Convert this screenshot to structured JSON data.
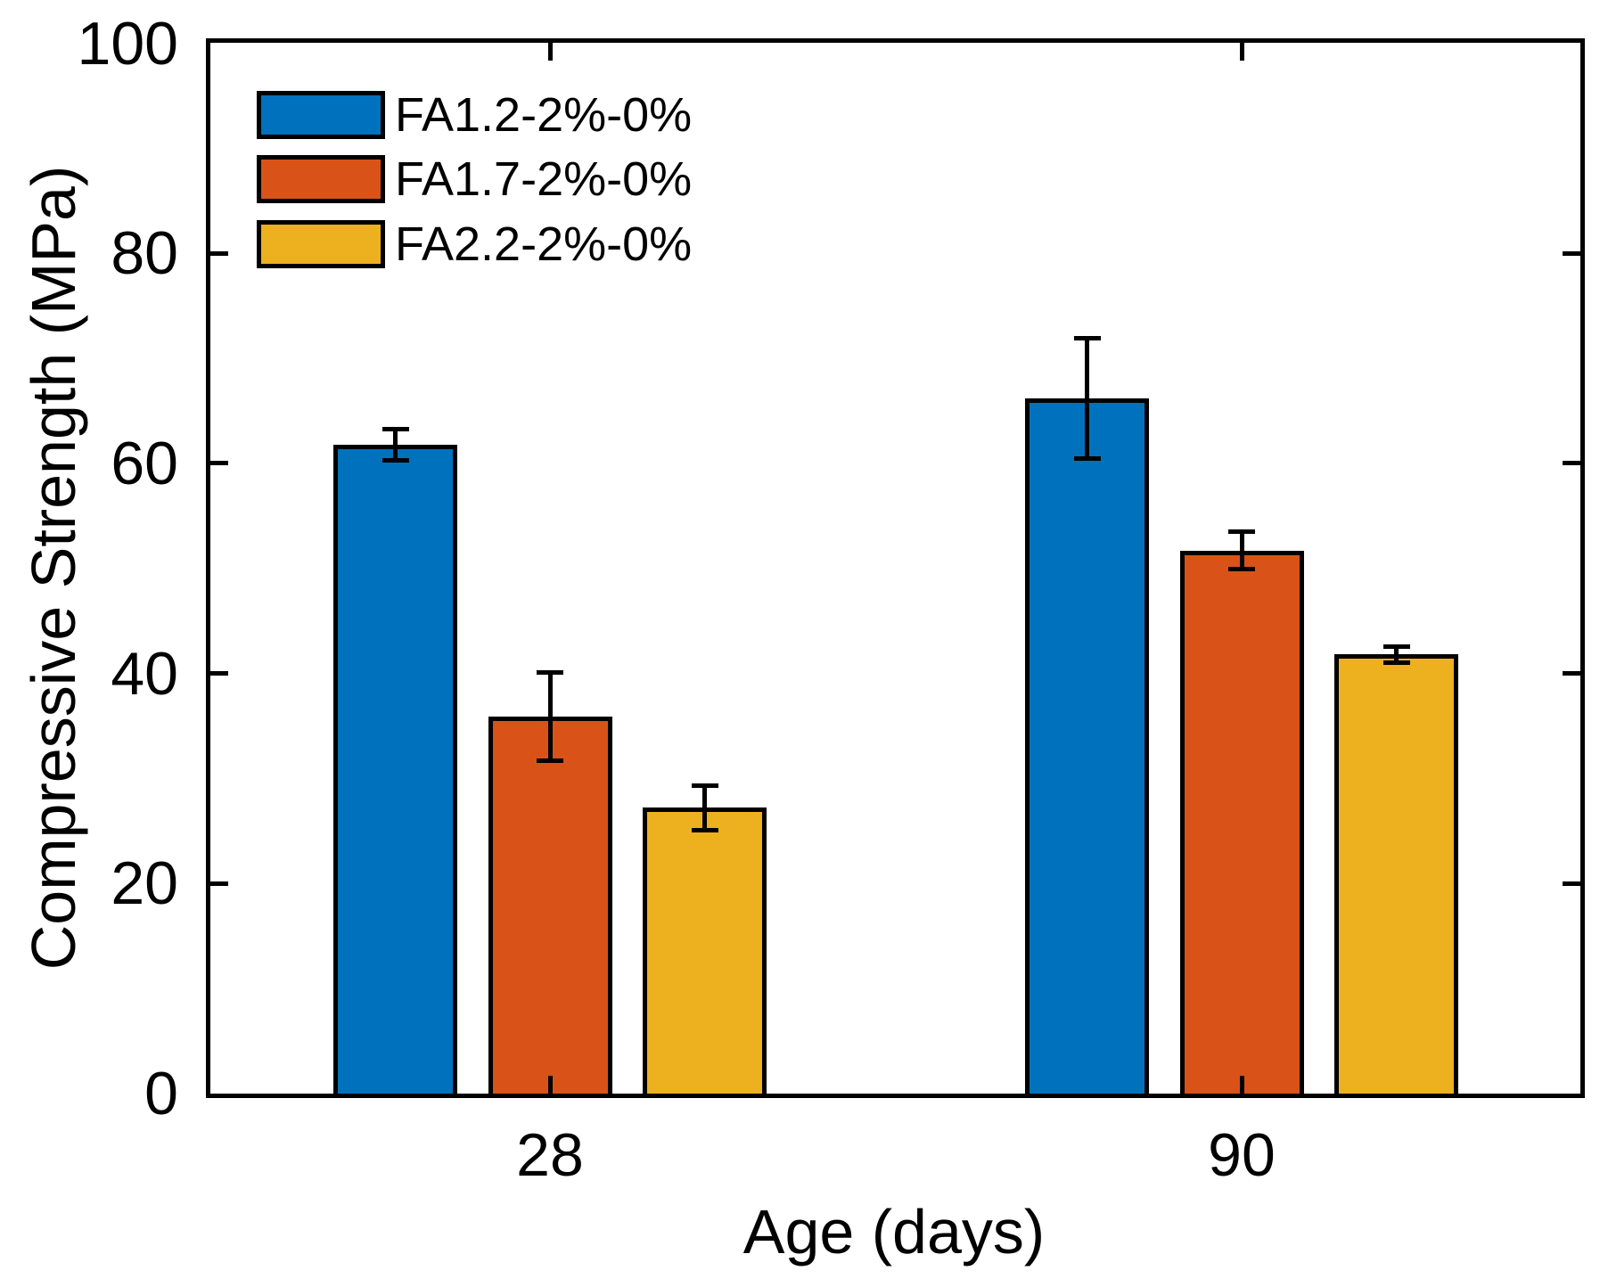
{
  "chart_data": {
    "type": "bar",
    "title": "",
    "xlabel": "Age (days)",
    "ylabel": "Compressive Strength (MPa)",
    "categories": [
      "28",
      "90"
    ],
    "series": [
      {
        "name": "FA1.2-2%-0%",
        "color": "#0072BD",
        "values": [
          61.8,
          66.2
        ],
        "errors": [
          1.5,
          5.7
        ]
      },
      {
        "name": "FA1.7-2%-0%",
        "color": "#D95319",
        "values": [
          35.9,
          51.7
        ],
        "errors": [
          4.2,
          1.8
        ]
      },
      {
        "name": "FA2.2-2%-0%",
        "color": "#EDB120",
        "values": [
          27.2,
          41.8
        ],
        "errors": [
          2.1,
          0.8
        ]
      }
    ],
    "ylim": [
      0,
      100
    ],
    "yticks": [
      0,
      20,
      40,
      60,
      80,
      100
    ],
    "grid": false,
    "legend_position": "upper-left",
    "error_bar_color": "#000000",
    "axis_color": "#000000",
    "background": "#FFFFFF"
  }
}
